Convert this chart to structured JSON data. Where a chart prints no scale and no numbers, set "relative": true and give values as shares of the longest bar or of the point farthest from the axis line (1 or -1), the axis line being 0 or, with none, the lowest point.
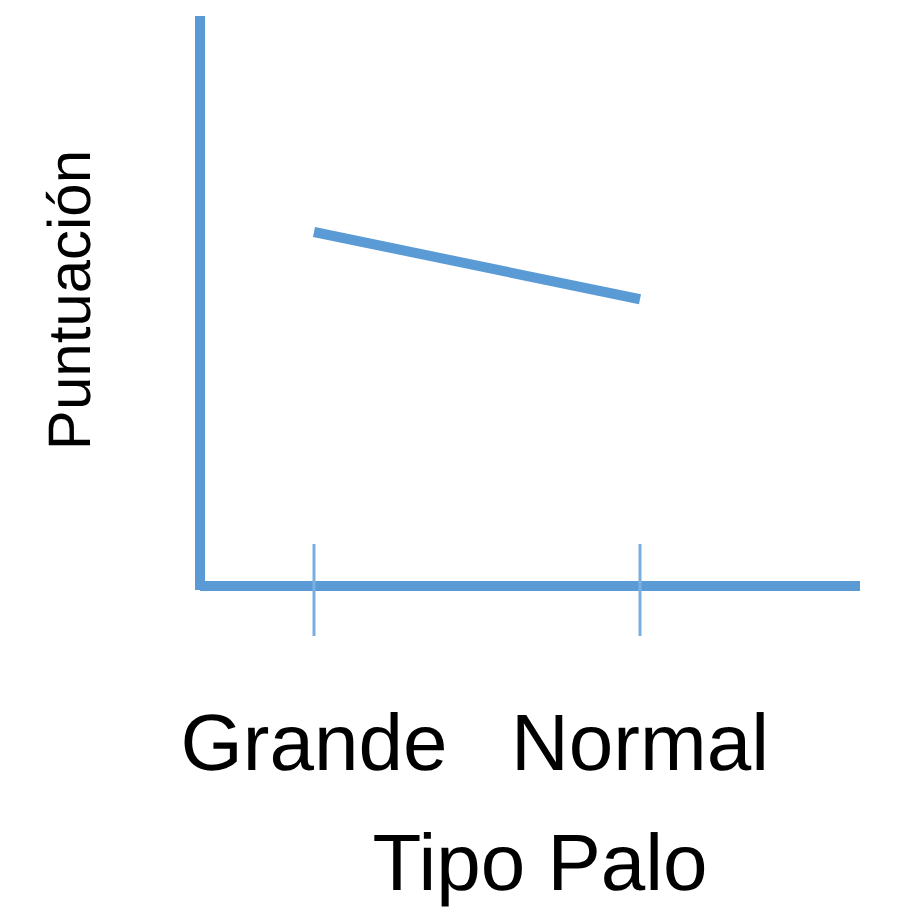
{
  "chart_data": {
    "type": "line",
    "relative": true,
    "xlabel": "Tipo Palo",
    "ylabel": "Puntuación",
    "categories": [
      "Grande",
      "Normal"
    ],
    "series": [
      {
        "color": "#5b9bd5",
        "values": [
          1,
          0.81
        ]
      }
    ],
    "marker": "none"
  }
}
